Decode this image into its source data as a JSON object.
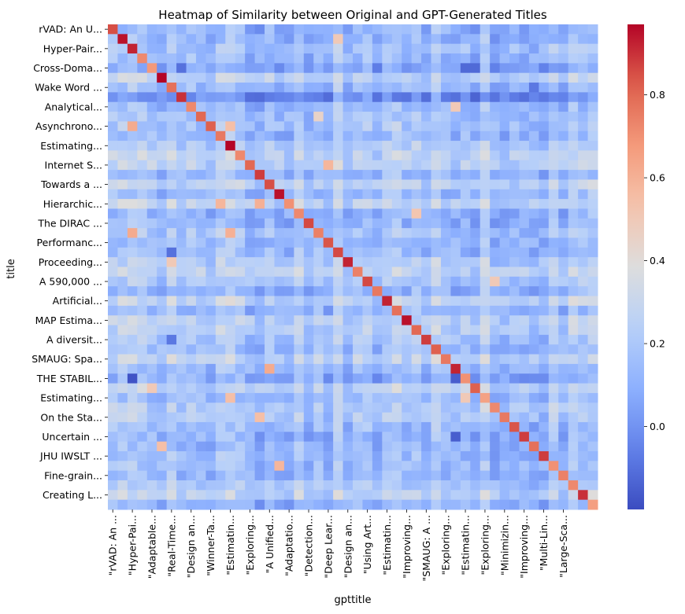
{
  "chart_data": {
    "type": "heatmap",
    "title": "Heatmap of Similarity between Original and GPT-Generated Titles",
    "xlabel": "gpttitle",
    "ylabel": "title",
    "n_rows": 50,
    "n_cols": 50,
    "y_tick_labels": [
      "rVAD: An U...",
      "Hyper-Pair...",
      "Cross-Doma...",
      "Wake Word ...",
      "Analytical...",
      "Asynchrono...",
      "Estimating...",
      "Internet S...",
      "Towards a ...",
      "Hierarchic...",
      "The DIRAC ...",
      "Performanc...",
      "Proceeding...",
      "A 590,000 ...",
      "Artificial...",
      "MAP Estima...",
      "A diversit...",
      "SMAUG: Spa...",
      "THE STABIL...",
      "Estimating...",
      "On the Sta...",
      "Uncertain ...",
      "JHU IWSLT ...",
      "Fine-grain...",
      "Creating L..."
    ],
    "x_tick_labels": [
      "\"rVAD: An ...",
      "\"Hyper-Pai...",
      "\"Adaptable...",
      "\"Real-Time...",
      "\"Design an...",
      "\"Winner-Ta...",
      "\"Estimatin...",
      "\"Exploring...",
      "\"A Unified...",
      "\"Adaptatio...",
      "\"Detection...",
      "\"Deep Lear...",
      "\"Design an...",
      "\"Using Art...",
      "\"Estimatin...",
      "\"Improving...",
      "\"SMAUG: A ...",
      "\"Exploring...",
      "\"Estimatin...",
      "\"Exploring...",
      "\"Minimizin...",
      "\"Improving...",
      "\"Multi-Lin...",
      "\"Large-Sca..."
    ],
    "colorbar": {
      "colormap": "coolwarm",
      "vmin": -0.2,
      "vmax": 0.97,
      "ticks": [
        0.8,
        0.6,
        0.4,
        0.2,
        0.0
      ],
      "tick_labels": [
        "0.8",
        "0.6",
        "0.4",
        "0.2",
        "0.0"
      ]
    },
    "diagonal_values": [
      0.85,
      0.95,
      0.92,
      0.72,
      0.68,
      0.97,
      0.78,
      0.9,
      0.72,
      0.8,
      0.82,
      0.76,
      0.97,
      0.72,
      0.8,
      0.88,
      0.85,
      0.95,
      0.7,
      0.72,
      0.86,
      0.74,
      0.84,
      0.86,
      0.92,
      0.74,
      0.86,
      0.76,
      0.92,
      0.78,
      0.95,
      0.8,
      0.88,
      0.82,
      0.76,
      0.92,
      0.7,
      0.82,
      0.65,
      0.72,
      0.76,
      0.84,
      0.88,
      0.78,
      0.88,
      0.7,
      0.74,
      0.72,
      0.9,
      0.66
    ],
    "notable_off_diagonal": [
      {
        "row": 1,
        "col": 23,
        "value": 0.5
      },
      {
        "row": 10,
        "col": 2,
        "value": 0.62
      },
      {
        "row": 21,
        "col": 2,
        "value": 0.62
      },
      {
        "row": 21,
        "col": 12,
        "value": 0.6
      },
      {
        "row": 14,
        "col": 22,
        "value": 0.58
      },
      {
        "row": 10,
        "col": 12,
        "value": 0.55
      },
      {
        "row": 18,
        "col": 11,
        "value": 0.58
      },
      {
        "row": 18,
        "col": 15,
        "value": 0.6
      },
      {
        "row": 19,
        "col": 31,
        "value": 0.52
      },
      {
        "row": 35,
        "col": 16,
        "value": 0.62
      },
      {
        "row": 38,
        "col": 12,
        "value": 0.55
      },
      {
        "row": 38,
        "col": 36,
        "value": 0.5
      },
      {
        "row": 43,
        "col": 5,
        "value": 0.55
      },
      {
        "row": 45,
        "col": 17,
        "value": 0.58
      },
      {
        "row": 8,
        "col": 35,
        "value": 0.5
      },
      {
        "row": 24,
        "col": 6,
        "value": 0.5
      },
      {
        "row": 9,
        "col": 21,
        "value": 0.45
      },
      {
        "row": 40,
        "col": 15,
        "value": 0.55
      },
      {
        "row": 37,
        "col": 4,
        "value": 0.5
      },
      {
        "row": 26,
        "col": 39,
        "value": 0.5
      }
    ],
    "low_value_rows": [
      4,
      7,
      22,
      36,
      49
    ],
    "low_value_cells": [
      {
        "row": 4,
        "col": 7,
        "value": -0.1
      },
      {
        "row": 4,
        "col": 36,
        "value": -0.12
      },
      {
        "row": 4,
        "col": 37,
        "value": -0.12
      },
      {
        "row": 36,
        "col": 2,
        "value": -0.18
      },
      {
        "row": 36,
        "col": 35,
        "value": -0.15
      },
      {
        "row": 42,
        "col": 35,
        "value": -0.15
      },
      {
        "row": 23,
        "col": 6,
        "value": -0.1
      },
      {
        "row": 6,
        "col": 43,
        "value": -0.08
      },
      {
        "row": 32,
        "col": 6,
        "value": -0.08
      },
      {
        "row": 7,
        "col": 29,
        "value": -0.08
      }
    ],
    "grid": false,
    "legend": "colorbar-right"
  }
}
